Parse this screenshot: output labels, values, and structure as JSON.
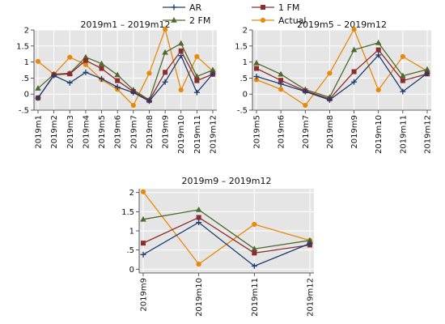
{
  "legend": [
    {
      "label": "AR",
      "color": "#1f3d73",
      "marker": "plus"
    },
    {
      "label": "1 FM",
      "color": "#8c2d2d",
      "marker": "square"
    },
    {
      "label": "2 FM",
      "color": "#4f6a2e",
      "marker": "triangle"
    },
    {
      "label": "Actual",
      "color": "#e8890c",
      "marker": "circle"
    }
  ],
  "chart_data": [
    {
      "type": "line",
      "title": "2019m1 – 2019m12",
      "x": [
        "2019m1",
        "2019m2",
        "2019m3",
        "2019m4",
        "2019m5",
        "2019m6",
        "2019m7",
        "2019m8",
        "2019m9",
        "2019m10",
        "2019m11",
        "2019m12"
      ],
      "ylim": [
        -0.5,
        2
      ],
      "yticks": [
        -0.5,
        0,
        0.5,
        1,
        1.5,
        2
      ],
      "ytick_labels": [
        "-.5",
        "0",
        ".5",
        "1",
        "1.5",
        "2"
      ],
      "grid": true,
      "series": [
        {
          "name": "AR",
          "values": [
            -0.12,
            0.58,
            0.35,
            0.68,
            0.48,
            0.22,
            0.05,
            -0.22,
            0.38,
            1.2,
            0.05,
            0.63
          ]
        },
        {
          "name": "1 FM",
          "values": [
            -0.12,
            0.6,
            0.63,
            1.05,
            0.8,
            0.42,
            0.08,
            -0.2,
            0.68,
            1.35,
            0.42,
            0.62
          ]
        },
        {
          "name": "2 FM",
          "values": [
            0.18,
            0.62,
            0.65,
            1.15,
            0.95,
            0.6,
            0.13,
            -0.18,
            1.3,
            1.58,
            0.55,
            0.75
          ]
        },
        {
          "name": "Actual",
          "values": [
            1.02,
            0.62,
            1.15,
            0.92,
            0.45,
            0.15,
            -0.35,
            0.65,
            2.02,
            0.13,
            1.17,
            0.72
          ]
        }
      ]
    },
    {
      "type": "line",
      "title": "2019m5 – 2019m12",
      "x": [
        "2019m5",
        "2019m6",
        "2019m7",
        "2019m8",
        "2019m9",
        "2019m10",
        "2019m11",
        "2019m12"
      ],
      "ylim": [
        -0.5,
        2
      ],
      "yticks": [
        -0.5,
        0,
        0.5,
        1,
        1.5,
        2
      ],
      "ytick_labels": [
        "-.5",
        "0",
        ".5",
        "1",
        "1.5",
        "2"
      ],
      "grid": true,
      "series": [
        {
          "name": "AR",
          "values": [
            0.55,
            0.32,
            0.08,
            -0.18,
            0.38,
            1.22,
            0.08,
            0.65
          ]
        },
        {
          "name": "1 FM",
          "values": [
            0.8,
            0.43,
            0.1,
            -0.15,
            0.7,
            1.38,
            0.42,
            0.63
          ]
        },
        {
          "name": "2 FM",
          "values": [
            0.97,
            0.62,
            0.14,
            -0.1,
            1.38,
            1.6,
            0.57,
            0.77
          ]
        },
        {
          "name": "Actual",
          "values": [
            0.45,
            0.15,
            -0.35,
            0.65,
            2.02,
            0.13,
            1.17,
            0.72
          ]
        }
      ]
    },
    {
      "type": "line",
      "title": "2019m9 – 2019m12",
      "x": [
        "2019m9",
        "2019m10",
        "2019m11",
        "2019m12"
      ],
      "ylim": [
        -0.1,
        2.1
      ],
      "yticks": [
        0,
        0.5,
        1,
        1.5,
        2
      ],
      "ytick_labels": [
        "0",
        ".5",
        "1",
        "1.5",
        "2"
      ],
      "grid": true,
      "series": [
        {
          "name": "AR",
          "values": [
            0.38,
            1.22,
            0.08,
            0.67
          ]
        },
        {
          "name": "1 FM",
          "values": [
            0.68,
            1.35,
            0.42,
            0.63
          ]
        },
        {
          "name": "2 FM",
          "values": [
            1.3,
            1.55,
            0.53,
            0.75
          ]
        },
        {
          "name": "Actual",
          "values": [
            2.02,
            0.13,
            1.17,
            0.75
          ]
        }
      ]
    }
  ]
}
